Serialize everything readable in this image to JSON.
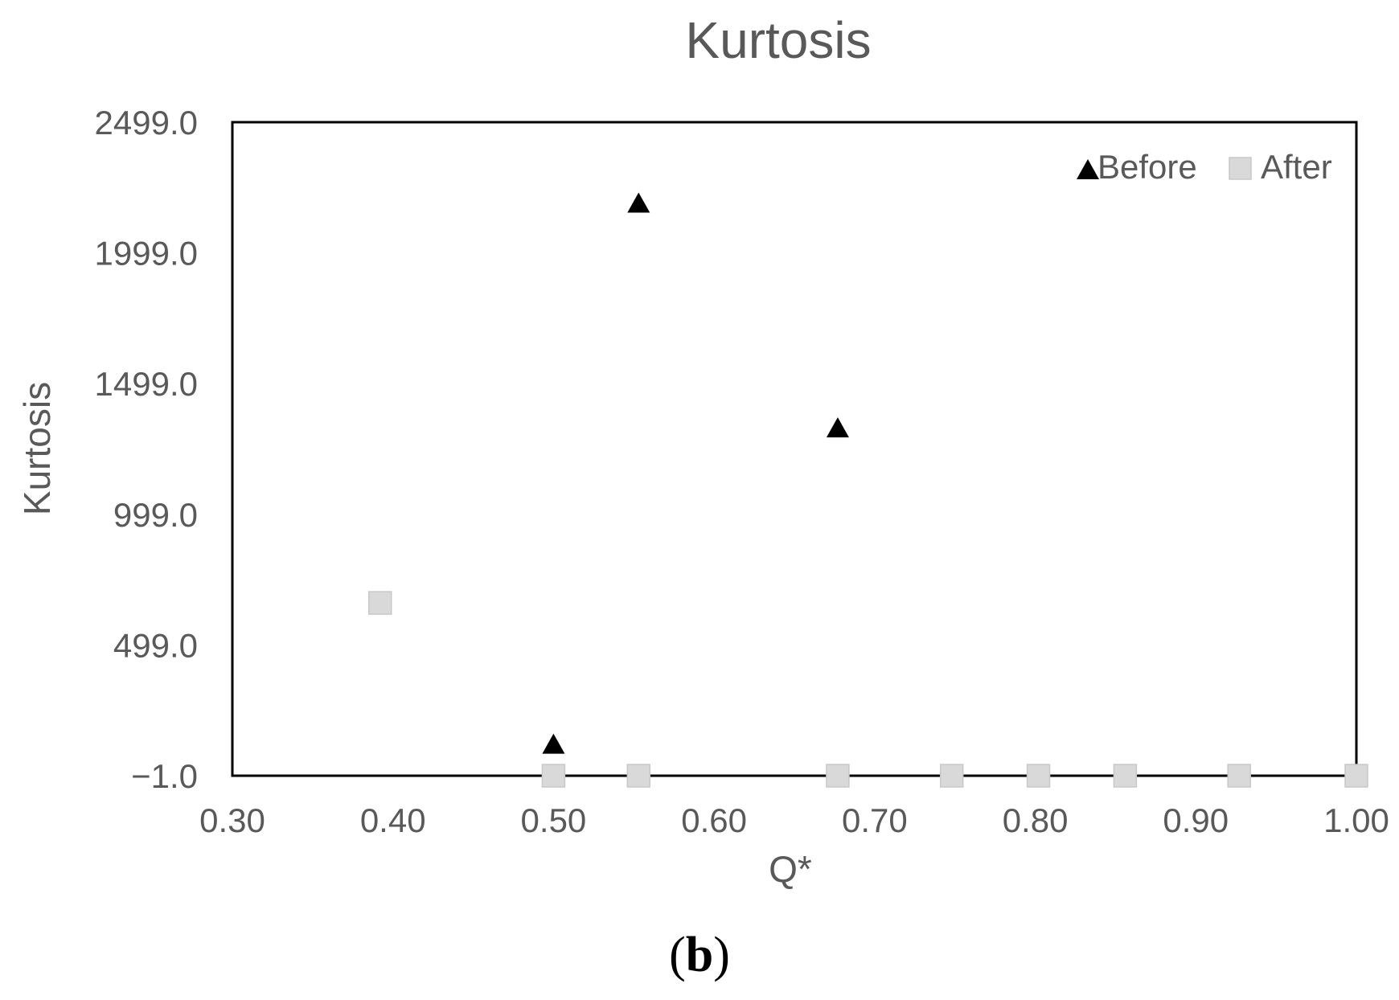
{
  "chart_data": {
    "type": "scatter",
    "title": "Kurtosis",
    "xlabel": "Q*",
    "ylabel": "Kurtosis",
    "xlim": [
      0.3,
      1.0
    ],
    "ylim": [
      -1.0,
      2499.0
    ],
    "x_ticks": [
      "0.30",
      "0.40",
      "0.50",
      "0.60",
      "0.70",
      "0.80",
      "0.90",
      "1.00"
    ],
    "x_tick_values": [
      0.3,
      0.4,
      0.5,
      0.6,
      0.7,
      0.8,
      0.9,
      1.0
    ],
    "y_ticks": [
      "−1.0",
      "499.0",
      "999.0",
      "1499.0",
      "1999.0",
      "2499.0"
    ],
    "y_tick_values": [
      -1.0,
      499.0,
      999.0,
      1499.0,
      1999.0,
      2499.0
    ],
    "grid": false,
    "legend_position": "top-right",
    "series": [
      {
        "name": "Before",
        "marker": "triangle",
        "color": "#000000",
        "points": [
          {
            "x": 0.5,
            "y": 120
          },
          {
            "x": 0.553,
            "y": 2190
          },
          {
            "x": 0.677,
            "y": 1330
          }
        ]
      },
      {
        "name": "After",
        "marker": "square",
        "color": "#d9d9d9",
        "points": [
          {
            "x": 0.392,
            "y": 660
          },
          {
            "x": 0.5,
            "y": -1
          },
          {
            "x": 0.553,
            "y": -1
          },
          {
            "x": 0.677,
            "y": -1
          },
          {
            "x": 0.748,
            "y": -1
          },
          {
            "x": 0.802,
            "y": -1
          },
          {
            "x": 0.856,
            "y": -1
          },
          {
            "x": 0.927,
            "y": -1
          },
          {
            "x": 1.0,
            "y": -1
          }
        ]
      }
    ]
  },
  "caption": {
    "open": "(",
    "letter": "b",
    "close": ")"
  }
}
